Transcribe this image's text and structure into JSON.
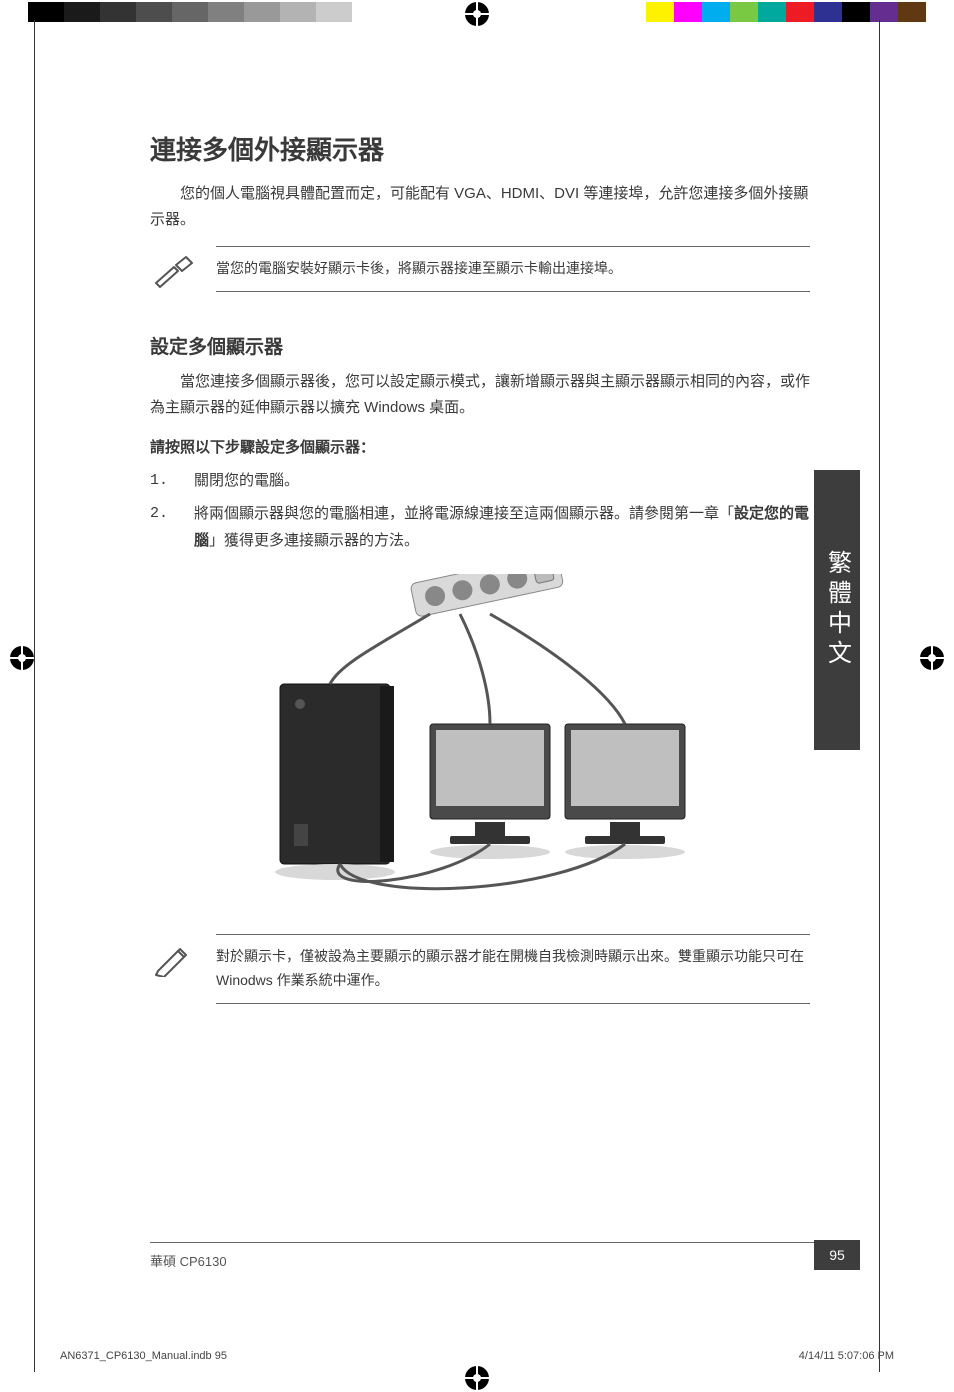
{
  "grayscale_strip": [
    "#000000",
    "#1a1a1a",
    "#333333",
    "#4d4d4d",
    "#666666",
    "#808080",
    "#999999",
    "#b3b3b3",
    "#cccccc",
    "#ffffff"
  ],
  "color_strip": [
    "#fff200",
    "#ff00ff",
    "#00aeef",
    "#7ac943",
    "#00a99d",
    "#ed1c24",
    "#2e3192",
    "#000000",
    "#662d91",
    "#603913"
  ],
  "title": "連接多個外接顯示器",
  "intro": "您的個人電腦視具體配置而定，可能配有 VGA、HDMI、DVI 等連接埠，允許您連接多個外接顯示器。",
  "tip_note": "當您的電腦安裝好顯示卡後，將顯示器接連至顯示卡輸出連接埠。",
  "section_heading": "設定多個顯示器",
  "section_intro": "當您連接多個顯示器後，您可以設定顯示模式，讓新增顯示器與主顯示器顯示相同的內容，或作為主顯示器的延伸顯示器以擴充 Windows 桌面。",
  "steps_heading": "請按照以下步驟設定多個顯示器：",
  "steps": [
    {
      "num": "1.",
      "text": "關閉您的電腦。"
    },
    {
      "num": "2.",
      "text_pre": "將兩個顯示器與您的電腦相連，並將電源線連接至這兩個顯示器。請參閱第一章「",
      "text_em": "設定您的電腦",
      "text_post": "」獲得更多連接顯示器的方法。"
    }
  ],
  "pencil_note": "對於顯示卡，僅被設為主要顯示的顯示器才能在開機自我檢測時顯示出來。雙重顯示功能只可在 Winodws 作業系統中運作。",
  "side_tab": "繁體中文",
  "footer_left": "華碩 CP6130",
  "page_number": "95",
  "print_file": "AN6371_CP6130_Manual.indb   95",
  "print_time": "4/14/11   5:07:06 PM"
}
